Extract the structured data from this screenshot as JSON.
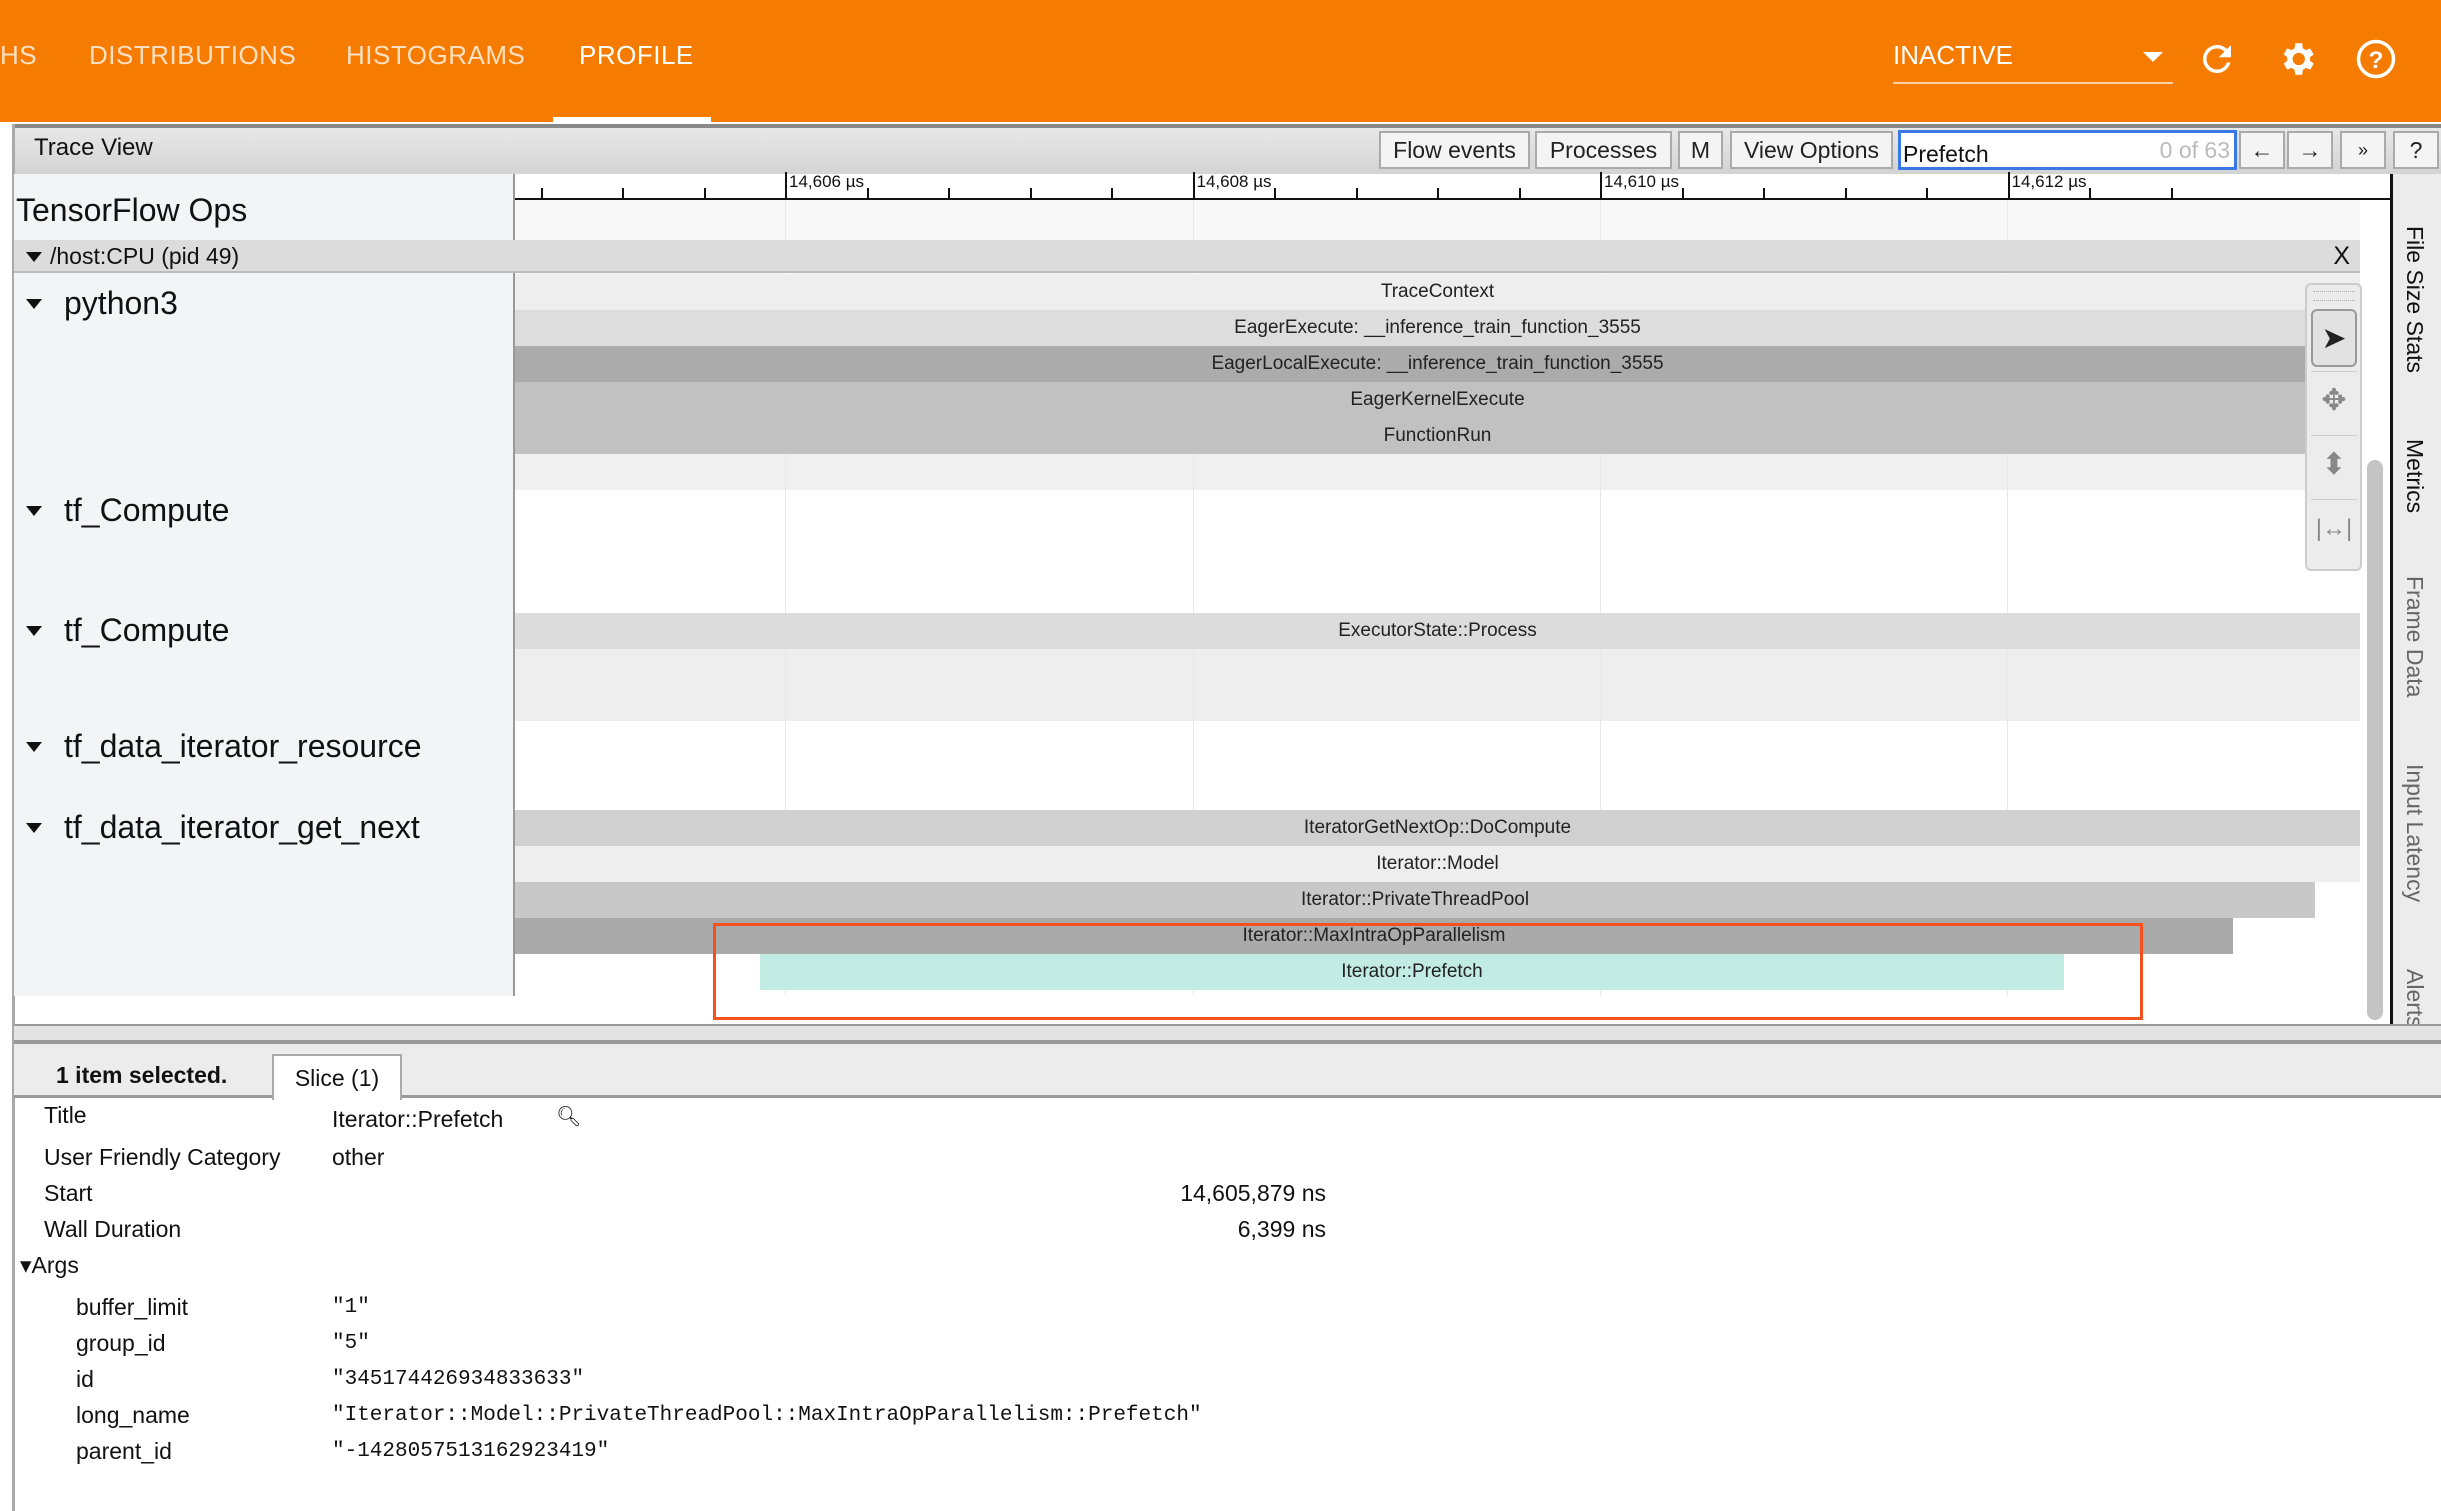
{
  "nav": {
    "tabs": [
      {
        "label": "HS"
      },
      {
        "label": "DISTRIBUTIONS"
      },
      {
        "label": "HISTOGRAMS"
      },
      {
        "label": "PROFILE",
        "active": true
      }
    ],
    "run_select": "INACTIVE",
    "icons": [
      "refresh-icon",
      "gear-icon",
      "help-icon"
    ],
    "accent": "#f57c00"
  },
  "toolbar": {
    "title": "Trace View",
    "flow_events": "Flow events",
    "processes": "Processes",
    "m": "M",
    "view_options": "View Options",
    "search_value": "Prefetch",
    "search_count": "0 of 63",
    "prev": "←",
    "next": "→",
    "more": "»",
    "help": "?"
  },
  "ruler": {
    "ticks": [
      "14,606 µs",
      "14,608 µs",
      "14,610 µs",
      "14,612 µs"
    ]
  },
  "tracks": {
    "group": "TensorFlow Ops",
    "process": "/host:CPU (pid 49)",
    "close": "X",
    "threads": [
      "python3",
      "tf_Compute",
      "tf_Compute",
      "tf_data_iterator_resource",
      "tf_data_iterator_get_next"
    ],
    "slices": [
      "TraceContext",
      "EagerExecute: __inference_train_function_3555",
      "EagerLocalExecute: __inference_train_function_3555",
      "EagerKernelExecute",
      "FunctionRun",
      "ExecutorState::Process",
      "IteratorGetNextOp::DoCompute",
      "Iterator::Model",
      "Iterator::PrivateThreadPool",
      "Iterator::MaxIntraOpParallelism",
      "Iterator::Prefetch"
    ],
    "selected_color": "#c2ece3",
    "highlight_color": "#f4511e"
  },
  "side_tabs": [
    "File Size Stats",
    "Metrics",
    "Frame Data",
    "Input Latency",
    "Alerts"
  ],
  "details": {
    "selected": "1 item selected.",
    "tab": "Slice (1)",
    "title_label": "Title",
    "title": "Iterator::Prefetch",
    "category_label": "User Friendly Category",
    "category": "other",
    "start_label": "Start",
    "start": "14,605,879 ns",
    "duration_label": "Wall Duration",
    "duration": "6,399 ns",
    "args_label": "Args",
    "args": [
      {
        "k": "buffer_limit",
        "v": "\"1\""
      },
      {
        "k": "group_id",
        "v": "\"5\""
      },
      {
        "k": "id",
        "v": "\"345174426934833633\""
      },
      {
        "k": "long_name",
        "v": "\"Iterator::Model::PrivateThreadPool::MaxIntraOpParallelism::Prefetch\""
      },
      {
        "k": "parent_id",
        "v": "\"-1428057513162923419\""
      }
    ]
  }
}
